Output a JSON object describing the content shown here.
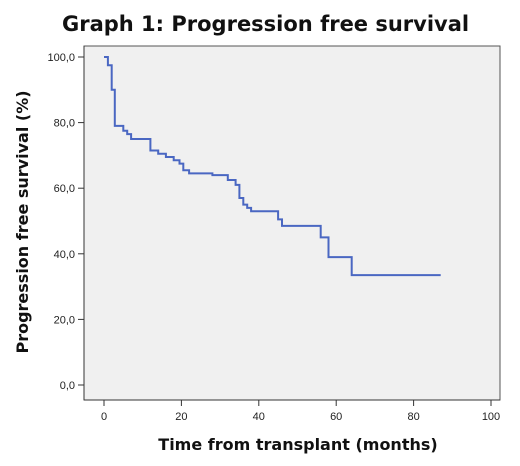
{
  "chart_data": {
    "type": "line",
    "title": "Graph 1: Progression free survival",
    "xlabel": "Time from transplant (months)",
    "ylabel": "Progression free survival (%)",
    "xlim": [
      0,
      100
    ],
    "ylim": [
      0,
      100
    ],
    "x_ticks": [
      "0",
      "20",
      "40",
      "60",
      "80",
      "100"
    ],
    "y_ticks": [
      "0,0",
      "20,0",
      "40,0",
      "60,0",
      "80,0",
      "100,0"
    ],
    "grid": false,
    "legend": "none",
    "colors": {
      "line": "#4a67c2",
      "plot_background": "#f0f0f0"
    },
    "series": [
      {
        "step": true,
        "x": [
          0,
          1,
          1.5,
          2,
          2.8,
          4,
          5,
          6,
          7,
          12,
          14,
          16,
          18,
          19.5,
          20.5,
          22,
          28,
          32,
          34,
          35,
          36,
          37,
          38,
          45,
          46,
          56,
          58,
          64,
          87
        ],
        "y": [
          100,
          97.5,
          97.5,
          90,
          79,
          79,
          77.5,
          76.5,
          75,
          71.5,
          70.5,
          69.5,
          68.5,
          67.5,
          65.5,
          64.5,
          64,
          62.5,
          61,
          57,
          55,
          54,
          53,
          50.5,
          48.5,
          45,
          39,
          33.5,
          33.5
        ]
      }
    ]
  }
}
